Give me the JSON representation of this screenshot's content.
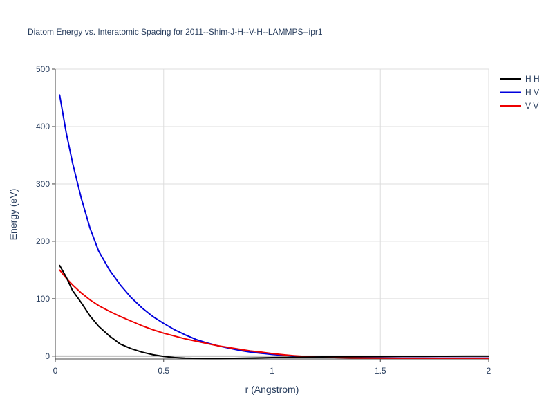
{
  "chart_data": {
    "type": "line",
    "title": "Diatom Energy vs. Interatomic Spacing for 2011--Shim-J-H--V-H--LAMMPS--ipr1",
    "xlabel": "r (Angstrom)",
    "ylabel": "Energy (eV)",
    "xlim": [
      0,
      2
    ],
    "ylim": [
      -5,
      500
    ],
    "x_ticks": [
      0,
      0.5,
      1,
      1.5,
      2
    ],
    "x_tick_labels": [
      "0",
      "0.5",
      "1",
      "1.5",
      "2"
    ],
    "y_ticks": [
      0,
      100,
      200,
      300,
      400,
      500
    ],
    "y_tick_labels": [
      "0",
      "100",
      "200",
      "300",
      "400",
      "500"
    ],
    "grid": true,
    "legend_position": "top-right",
    "series": [
      {
        "name": "H H",
        "color": "#000000",
        "x": [
          0.02,
          0.05,
          0.08,
          0.12,
          0.16,
          0.2,
          0.25,
          0.3,
          0.35,
          0.4,
          0.45,
          0.5,
          0.55,
          0.6,
          0.65,
          0.7,
          0.75,
          0.8,
          0.9,
          1.0,
          1.1,
          1.2,
          1.3,
          1.4,
          1.5,
          1.6,
          1.7,
          1.8,
          1.9,
          2.0
        ],
        "y": [
          158,
          138,
          114,
          93,
          70,
          52,
          35,
          21,
          13,
          7,
          2.5,
          -0.5,
          -2.5,
          -3.5,
          -4.0,
          -4.3,
          -4.3,
          -4.0,
          -3.3,
          -2.6,
          -2.0,
          -1.5,
          -1.1,
          -0.8,
          -0.6,
          -0.4,
          -0.3,
          -0.2,
          -0.1,
          -0.1
        ]
      },
      {
        "name": "H V",
        "color": "#0000dd",
        "x": [
          0.02,
          0.05,
          0.08,
          0.12,
          0.16,
          0.2,
          0.25,
          0.3,
          0.35,
          0.4,
          0.45,
          0.5,
          0.55,
          0.6,
          0.65,
          0.7,
          0.75,
          0.8,
          0.85,
          0.9,
          0.95,
          1.0,
          1.05,
          1.1,
          1.15,
          1.2,
          1.3,
          1.4,
          1.5,
          1.6,
          1.7,
          1.8,
          1.9,
          2.0
        ],
        "y": [
          455,
          390,
          336,
          275,
          223,
          183,
          150,
          124,
          102,
          84,
          69,
          57,
          46,
          37,
          29,
          23,
          18,
          14,
          10,
          7,
          5,
          3,
          1.5,
          0.3,
          -0.8,
          -1.5,
          -2.5,
          -3.0,
          -3.2,
          -3.3,
          -3.3,
          -3.3,
          -3.3,
          -3.3
        ]
      },
      {
        "name": "V V",
        "color": "#ee0000",
        "x": [
          0.02,
          0.05,
          0.08,
          0.12,
          0.16,
          0.2,
          0.25,
          0.3,
          0.35,
          0.4,
          0.45,
          0.5,
          0.55,
          0.6,
          0.65,
          0.7,
          0.75,
          0.8,
          0.85,
          0.9,
          0.95,
          1.0,
          1.05,
          1.1,
          1.15,
          1.2,
          1.3,
          1.4,
          1.5,
          1.6,
          1.7,
          1.8,
          1.9,
          2.0
        ],
        "y": [
          150,
          136,
          124,
          110,
          98,
          88,
          78,
          69,
          61,
          53,
          46,
          40,
          35,
          30,
          26,
          22,
          18,
          15,
          12,
          9,
          7,
          4.5,
          2.5,
          0.8,
          -0.5,
          -1.5,
          -2.8,
          -3.3,
          -3.5,
          -3.6,
          -3.6,
          -3.6,
          -3.6,
          -3.6
        ]
      }
    ]
  }
}
